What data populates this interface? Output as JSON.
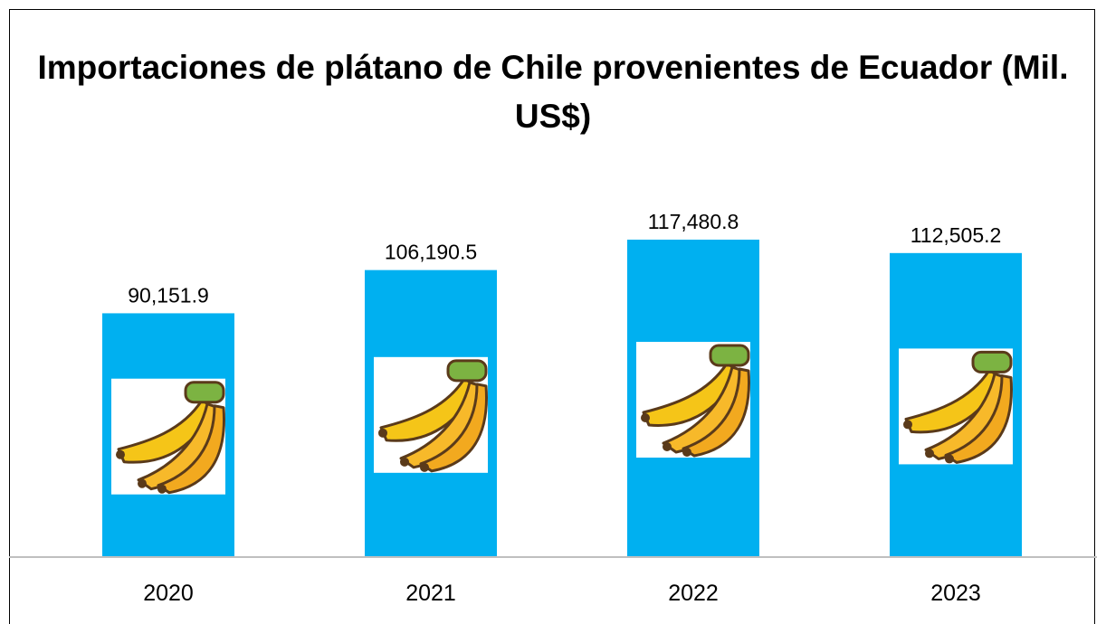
{
  "chart_data": {
    "type": "bar",
    "title": "Importaciones de plátano de Chile provenientes de Ecuador (Mil. US$)",
    "categories": [
      "2020",
      "2021",
      "2022",
      "2023"
    ],
    "values": [
      90151.9,
      106190.5,
      117480.8,
      112505.2
    ],
    "value_labels": [
      "90,151.9",
      "106,190.5",
      "117,480.8",
      "112,505.2"
    ],
    "color": "#00b0f0"
  }
}
